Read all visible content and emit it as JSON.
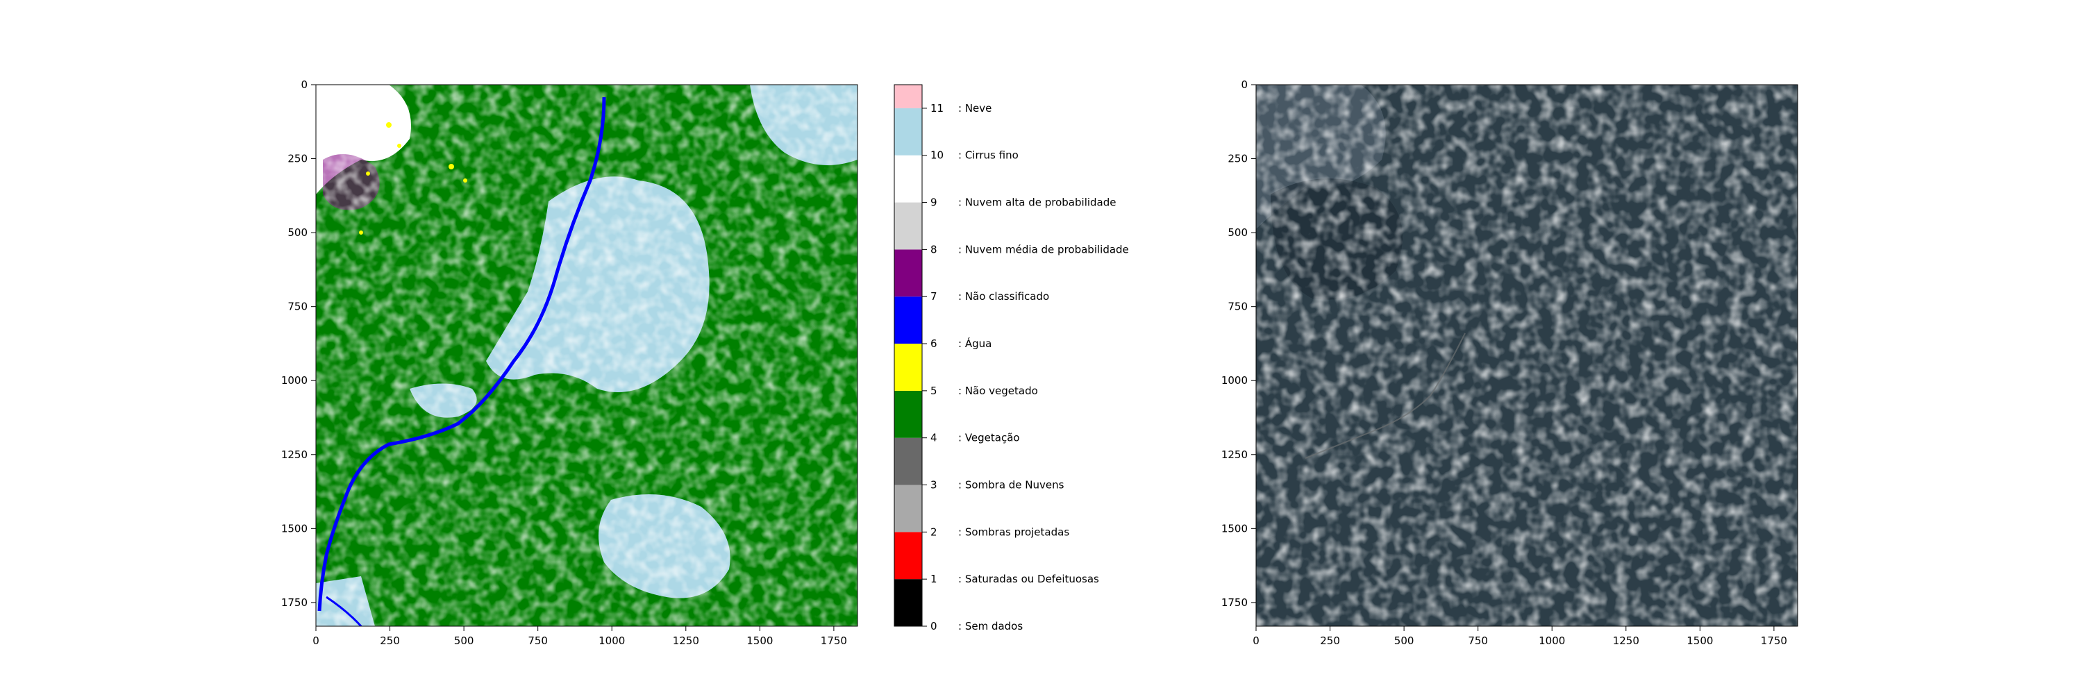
{
  "figure": {
    "legend": [
      {
        "value": 0,
        "label": ": Sem dados",
        "color": "#000000"
      },
      {
        "value": 1,
        "label": ": Saturadas ou Defeituosas",
        "color": "#ff0000"
      },
      {
        "value": 2,
        "label": ": Sombras projetadas",
        "color": "#a9a9a9"
      },
      {
        "value": 3,
        "label": ": Sombra de Nuvens",
        "color": "#696969"
      },
      {
        "value": 4,
        "label": ": Vegetação",
        "color": "#008000"
      },
      {
        "value": 5,
        "label": ": Não vegetado",
        "color": "#ffff00"
      },
      {
        "value": 6,
        "label": ": Água",
        "color": "#0000ff"
      },
      {
        "value": 7,
        "label": ": Não classificado",
        "color": "#800080"
      },
      {
        "value": 8,
        "label": ": Nuvem média de probabilidade",
        "color": "#d3d3d3"
      },
      {
        "value": 9,
        "label": ": Nuvem alta de probabilidade",
        "color": "#ffffff"
      },
      {
        "value": 10,
        "label": ": Cirrus fino",
        "color": "#add8e6"
      },
      {
        "value": 11,
        "label": ": Neve",
        "color": "#ffc0cb"
      }
    ]
  },
  "chart_data": [
    {
      "type": "heatmap",
      "description_tag": "scene-classification",
      "x": {
        "ticks": [
          0,
          250,
          500,
          750,
          1000,
          1250,
          1500,
          1750
        ],
        "lim": [
          0,
          1830
        ]
      },
      "y": {
        "ticks": [
          0,
          250,
          500,
          750,
          1000,
          1250,
          1500,
          1750
        ],
        "lim": [
          1830,
          0
        ],
        "inverted": true
      },
      "colorbar": {
        "ticks": [
          0,
          1,
          2,
          3,
          4,
          5,
          6,
          7,
          8,
          9,
          10,
          11
        ],
        "lim": [
          0,
          11.5
        ]
      },
      "classes_visible": [
        4,
        6,
        9,
        10,
        8,
        3,
        5,
        7
      ]
    },
    {
      "type": "heatmap",
      "description_tag": "true-color",
      "x": {
        "ticks": [
          0,
          250,
          500,
          750,
          1000,
          1250,
          1500,
          1750
        ],
        "lim": [
          0,
          1830
        ]
      },
      "y": {
        "ticks": [
          0,
          250,
          500,
          750,
          1000,
          1250,
          1500,
          1750
        ],
        "lim": [
          1830,
          0
        ],
        "inverted": true
      }
    }
  ]
}
